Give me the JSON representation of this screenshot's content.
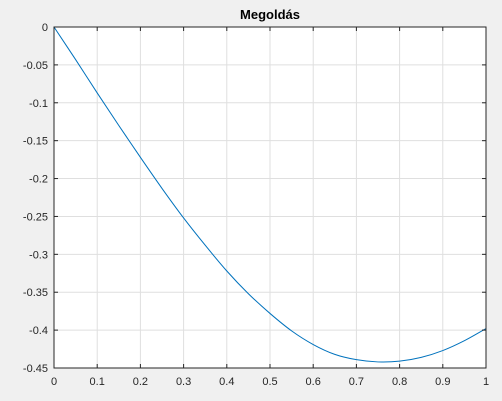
{
  "chart_data": {
    "type": "line",
    "title": "Megoldás",
    "xlabel": "",
    "ylabel": "",
    "xlim": [
      0,
      1
    ],
    "ylim": [
      -0.45,
      0
    ],
    "grid": true,
    "xticks": [
      0,
      0.1,
      0.2,
      0.3,
      0.4,
      0.5,
      0.6,
      0.7,
      0.8,
      0.9,
      1
    ],
    "xtick_labels": [
      "0",
      "0.1",
      "0.2",
      "0.3",
      "0.4",
      "0.5",
      "0.6",
      "0.7",
      "0.8",
      "0.9",
      "1"
    ],
    "yticks": [
      0,
      -0.05,
      -0.1,
      -0.15,
      -0.2,
      -0.25,
      -0.3,
      -0.35,
      -0.4,
      -0.45
    ],
    "ytick_labels": [
      "0",
      "-0.05",
      "-0.1",
      "-0.15",
      "-0.2",
      "-0.25",
      "-0.3",
      "-0.35",
      "-0.4",
      "-0.45"
    ],
    "series": [
      {
        "color": "#0072bd",
        "x": [
          0,
          0.05,
          0.1,
          0.15,
          0.2,
          0.25,
          0.3,
          0.35,
          0.4,
          0.45,
          0.5,
          0.55,
          0.6,
          0.65,
          0.7,
          0.75,
          0.8,
          0.85,
          0.9,
          0.95,
          1
        ],
        "y": [
          0,
          -0.043,
          -0.087,
          -0.13,
          -0.172,
          -0.213,
          -0.252,
          -0.288,
          -0.322,
          -0.352,
          -0.378,
          -0.401,
          -0.419,
          -0.432,
          -0.439,
          -0.442,
          -0.441,
          -0.436,
          -0.427,
          -0.414,
          -0.398
        ]
      }
    ]
  }
}
